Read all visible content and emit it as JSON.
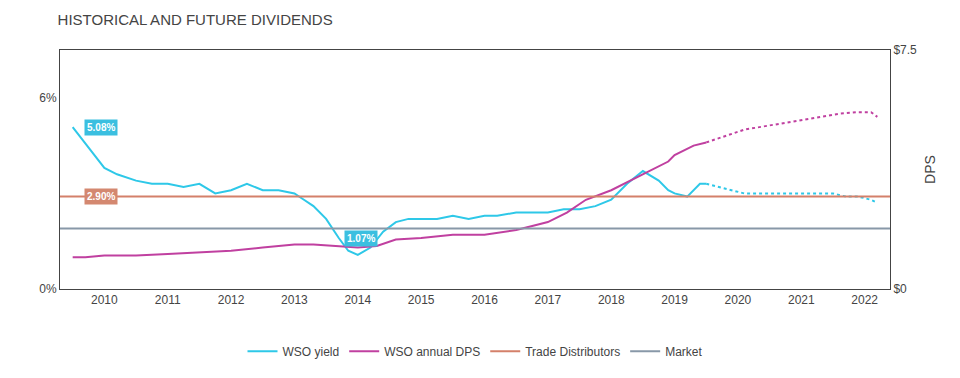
{
  "chart_data": {
    "type": "line",
    "title": "HISTORICAL AND FUTURE DIVIDENDS",
    "xlim": [
      2009.3,
      2022.4
    ],
    "xticks": [
      2010,
      2011,
      2012,
      2013,
      2014,
      2015,
      2016,
      2017,
      2018,
      2019,
      2020,
      2021,
      2022
    ],
    "ylim": [
      0,
      0.075
    ],
    "yticks": [
      {
        "value": 0,
        "label": "0%"
      },
      {
        "value": 0.06,
        "label": "6%"
      }
    ],
    "y2lim": [
      0,
      7.5
    ],
    "y2ticks": [
      {
        "value": 0,
        "label": "$0"
      },
      {
        "value": 7.5,
        "label": "$7.5"
      }
    ],
    "y2label": "DPS",
    "grid": false,
    "legend": "bottom",
    "series": [
      {
        "name": "WSO yield",
        "color": "#2ec8e8",
        "line_style": "solid",
        "x": [
          2009.5,
          2009.65,
          2009.85,
          2010.0,
          2010.2,
          2010.5,
          2010.75,
          2011.0,
          2011.25,
          2011.5,
          2011.75,
          2012.0,
          2012.25,
          2012.5,
          2012.75,
          2013.0,
          2013.15,
          2013.3,
          2013.5,
          2013.7,
          2013.85,
          2014.0,
          2014.2,
          2014.4,
          2014.6,
          2014.8,
          2015.0,
          2015.25,
          2015.5,
          2015.75,
          2016.0,
          2016.2,
          2016.5,
          2016.75,
          2017.0,
          2017.25,
          2017.5,
          2017.75,
          2018.0,
          2018.25,
          2018.5,
          2018.75,
          2018.9,
          2019.0,
          2019.2,
          2019.4,
          2019.5
        ],
        "values": [
          0.0508,
          0.047,
          0.042,
          0.038,
          0.036,
          0.034,
          0.033,
          0.033,
          0.032,
          0.033,
          0.03,
          0.031,
          0.033,
          0.031,
          0.031,
          0.03,
          0.028,
          0.026,
          0.022,
          0.016,
          0.012,
          0.0107,
          0.013,
          0.018,
          0.021,
          0.022,
          0.022,
          0.022,
          0.023,
          0.022,
          0.023,
          0.023,
          0.024,
          0.024,
          0.024,
          0.025,
          0.025,
          0.026,
          0.028,
          0.033,
          0.037,
          0.034,
          0.031,
          0.03,
          0.029,
          0.033,
          0.033
        ]
      },
      {
        "name": "WSO yield",
        "color": "#2ec8e8",
        "line_style": "dotted",
        "x": [
          2019.5,
          2019.7,
          2019.9,
          2020.1,
          2020.3,
          2020.5,
          2020.7,
          2020.9,
          2021.1,
          2021.3,
          2021.5,
          2021.7,
          2021.9,
          2022.1,
          2022.2
        ],
        "values": [
          0.033,
          0.032,
          0.031,
          0.03,
          0.03,
          0.03,
          0.03,
          0.03,
          0.03,
          0.03,
          0.03,
          0.029,
          0.029,
          0.028,
          0.027
        ]
      },
      {
        "name": "WSO annual DPS",
        "color": "#c040a0",
        "line_style": "solid",
        "axis": "y2",
        "x": [
          2009.5,
          2009.7,
          2010.0,
          2010.5,
          2011.0,
          2011.5,
          2012.0,
          2012.5,
          2013.0,
          2013.3,
          2013.6,
          2014.0,
          2014.3,
          2014.6,
          2015.0,
          2015.5,
          2016.0,
          2016.5,
          2016.8,
          2017.0,
          2017.3,
          2017.6,
          2018.0,
          2018.3,
          2018.6,
          2018.9,
          2019.0,
          2019.3,
          2019.5
        ],
        "values": [
          1.0,
          1.0,
          1.05,
          1.05,
          1.1,
          1.15,
          1.2,
          1.3,
          1.4,
          1.4,
          1.35,
          1.3,
          1.35,
          1.55,
          1.6,
          1.7,
          1.7,
          1.85,
          2.0,
          2.1,
          2.4,
          2.8,
          3.1,
          3.4,
          3.7,
          4.0,
          4.2,
          4.5,
          4.6
        ]
      },
      {
        "name": "WSO annual DPS",
        "color": "#c040a0",
        "line_style": "dotted",
        "axis": "y2",
        "x": [
          2019.5,
          2019.8,
          2020.1,
          2020.4,
          2020.7,
          2021.0,
          2021.3,
          2021.6,
          2021.9,
          2022.1,
          2022.2
        ],
        "values": [
          4.6,
          4.8,
          5.0,
          5.1,
          5.2,
          5.3,
          5.4,
          5.5,
          5.55,
          5.55,
          5.4
        ]
      },
      {
        "name": "Trade Distributors",
        "color": "#d4806a",
        "line_style": "solid",
        "axis": "y2",
        "x": [
          2009.3,
          2022.4
        ],
        "values": [
          2.9,
          2.9
        ]
      },
      {
        "name": "Market",
        "color": "#8898a8",
        "line_style": "solid",
        "axis": "y2",
        "x": [
          2009.3,
          2022.4
        ],
        "values": [
          1.9,
          1.9
        ]
      }
    ],
    "annotations": [
      {
        "text": "5.08%",
        "x": 2009.62,
        "y": 0.0508,
        "color": "#3bbfe0"
      },
      {
        "text": "2.90%",
        "x": 2009.62,
        "y": 0.029,
        "color": "#d48870"
      },
      {
        "text": "1.07%",
        "x": 2014.05,
        "y": 0.0107,
        "color": "#3bbfe0"
      }
    ]
  }
}
